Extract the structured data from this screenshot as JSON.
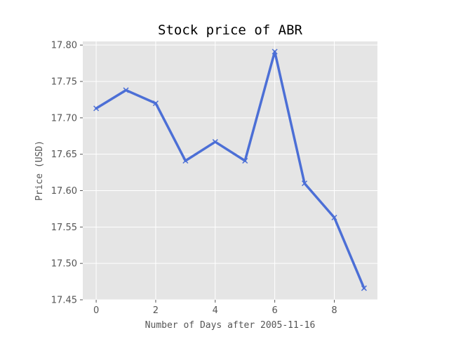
{
  "chart_data": {
    "type": "line",
    "title": "Stock price of ABR",
    "xlabel": "Number of Days after 2005-11-16",
    "ylabel": "Price (USD)",
    "x": [
      0,
      1,
      2,
      3,
      4,
      5,
      6,
      7,
      8,
      9
    ],
    "series": [
      {
        "values": [
          17.713,
          17.738,
          17.72,
          17.641,
          17.667,
          17.641,
          17.791,
          17.61,
          17.563,
          17.466
        ],
        "color": "#4c6fd6",
        "marker": "x"
      }
    ],
    "xlim": [
      -0.45,
      9.45
    ],
    "ylim": [
      17.45,
      17.805
    ],
    "xticks": [
      0,
      2,
      4,
      6,
      8
    ],
    "xtick_labels": [
      "0",
      "2",
      "4",
      "6",
      "8"
    ],
    "yticks": [
      17.45,
      17.5,
      17.55,
      17.6,
      17.65,
      17.7,
      17.75,
      17.8
    ],
    "ytick_labels": [
      "17.45",
      "17.50",
      "17.55",
      "17.60",
      "17.65",
      "17.70",
      "17.75",
      "17.80"
    ],
    "grid": true,
    "style": {
      "background": "#e5e5e5",
      "grid_color": "#ffffff",
      "tick_color": "#555555"
    }
  }
}
